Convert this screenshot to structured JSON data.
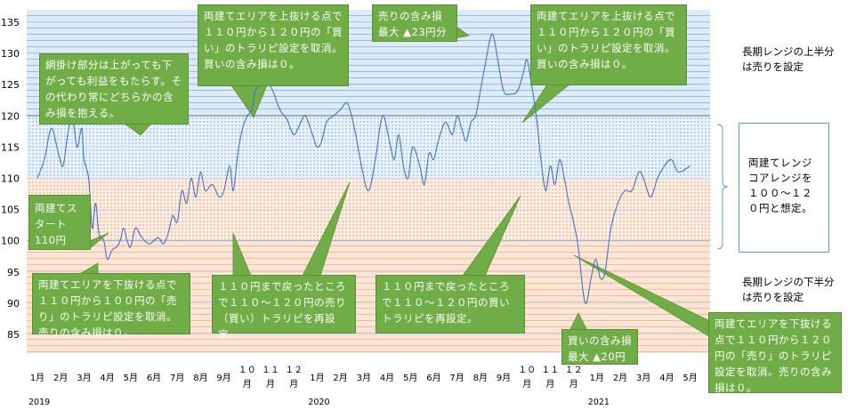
{
  "chart_data": {
    "type": "line",
    "x_unit": "month",
    "x": [
      "2019-01",
      "2019-02",
      "2019-03",
      "2019-04",
      "2019-05",
      "2019-06",
      "2019-07",
      "2019-08",
      "2019-09",
      "2019-10",
      "2019-11",
      "2019-12",
      "2020-01",
      "2020-02",
      "2020-03",
      "2020-04",
      "2020-05",
      "2020-06",
      "2020-07",
      "2020-08",
      "2020-09",
      "2020-10",
      "2020-11",
      "2020-12",
      "2021-01",
      "2021-02",
      "2021-03",
      "2021-04",
      "2021-05"
    ],
    "x_tick_labels": [
      "1月",
      "2月",
      "3月",
      "4月",
      "5月",
      "6月",
      "7月",
      "8月",
      "9月",
      "１０月",
      "１１月",
      "１２月",
      "1月",
      "2月",
      "3月",
      "4月",
      "5月",
      "6月",
      "7月",
      "8月",
      "9月",
      "１０月",
      "１１月",
      "１２月",
      "1月",
      "2月",
      "3月",
      "4月",
      "5月"
    ],
    "year_labels": [
      "2019",
      "2020",
      "2021"
    ],
    "ylim": [
      82,
      137
    ],
    "y_ticks": [
      85,
      90,
      95,
      100,
      105,
      110,
      115,
      120,
      125,
      130,
      135
    ],
    "series": [
      {
        "color": "#4472c4",
        "values": [
          [
            0.0,
            110
          ],
          [
            0.3,
            113
          ],
          [
            0.6,
            118
          ],
          [
            0.9,
            114
          ],
          [
            1.1,
            112
          ],
          [
            1.3,
            117
          ],
          [
            1.5,
            120
          ],
          [
            1.7,
            115
          ],
          [
            1.9,
            118
          ],
          [
            2.0,
            113
          ],
          [
            2.2,
            110
          ],
          [
            2.35,
            102
          ],
          [
            2.5,
            106
          ],
          [
            2.65,
            101
          ],
          [
            2.85,
            100
          ],
          [
            3.0,
            97
          ],
          [
            3.2,
            98.5
          ],
          [
            3.4,
            99
          ],
          [
            3.55,
            100
          ],
          [
            3.7,
            102
          ],
          [
            3.85,
            100
          ],
          [
            4.0,
            99
          ],
          [
            4.2,
            102
          ],
          [
            4.4,
            101
          ],
          [
            4.6,
            100
          ],
          [
            4.8,
            99.5
          ],
          [
            5.0,
            100
          ],
          [
            5.2,
            100.5
          ],
          [
            5.4,
            99.5
          ],
          [
            5.6,
            101
          ],
          [
            5.8,
            104
          ],
          [
            6.0,
            103
          ],
          [
            6.2,
            108
          ],
          [
            6.4,
            106
          ],
          [
            6.6,
            110
          ],
          [
            6.8,
            107
          ],
          [
            7.0,
            111
          ],
          [
            7.2,
            108
          ],
          [
            7.5,
            109
          ],
          [
            7.8,
            107
          ],
          [
            8.0,
            108
          ],
          [
            8.25,
            112
          ],
          [
            8.4,
            108
          ],
          [
            8.6,
            114
          ],
          [
            8.8,
            118
          ],
          [
            9.0,
            120
          ],
          [
            9.2,
            121
          ],
          [
            9.35,
            124
          ],
          [
            9.6,
            125
          ],
          [
            9.9,
            125
          ],
          [
            10.1,
            124
          ],
          [
            10.4,
            121
          ],
          [
            10.7,
            119.5
          ],
          [
            11.0,
            117
          ],
          [
            11.3,
            119
          ],
          [
            11.5,
            120
          ],
          [
            11.8,
            117
          ],
          [
            12.0,
            115
          ],
          [
            12.2,
            116
          ],
          [
            12.4,
            119
          ],
          [
            12.7,
            120
          ],
          [
            13.0,
            121
          ],
          [
            13.3,
            122
          ],
          [
            13.6,
            118
          ],
          [
            13.9,
            112
          ],
          [
            14.2,
            108
          ],
          [
            14.5,
            113
          ],
          [
            14.8,
            120
          ],
          [
            15.1,
            116
          ],
          [
            15.3,
            113
          ],
          [
            15.5,
            117
          ],
          [
            15.7,
            112
          ],
          [
            15.9,
            110
          ],
          [
            16.1,
            115
          ],
          [
            16.4,
            112
          ],
          [
            16.6,
            109
          ],
          [
            16.8,
            114
          ],
          [
            17.0,
            113
          ],
          [
            17.2,
            116
          ],
          [
            17.5,
            119
          ],
          [
            17.8,
            117
          ],
          [
            18.0,
            120
          ],
          [
            18.2,
            118
          ],
          [
            18.4,
            116
          ],
          [
            18.6,
            119
          ],
          [
            18.8,
            120
          ],
          [
            19.0,
            124
          ],
          [
            19.2,
            128
          ],
          [
            19.4,
            132
          ],
          [
            19.55,
            133
          ],
          [
            19.75,
            129
          ],
          [
            20.0,
            124
          ],
          [
            20.3,
            123.5
          ],
          [
            20.6,
            124
          ],
          [
            20.85,
            127
          ],
          [
            21.0,
            129
          ],
          [
            21.2,
            125
          ],
          [
            21.4,
            120
          ],
          [
            21.6,
            113
          ],
          [
            21.8,
            108
          ],
          [
            22.0,
            112
          ],
          [
            22.2,
            109
          ],
          [
            22.4,
            113
          ],
          [
            22.6,
            110
          ],
          [
            22.8,
            106
          ],
          [
            23.0,
            103
          ],
          [
            23.2,
            99
          ],
          [
            23.4,
            92
          ],
          [
            23.55,
            90
          ],
          [
            23.75,
            94
          ],
          [
            23.95,
            97
          ],
          [
            24.15,
            94
          ],
          [
            24.35,
            95
          ],
          [
            24.6,
            102
          ],
          [
            24.9,
            106
          ],
          [
            25.2,
            108
          ],
          [
            25.5,
            108
          ],
          [
            25.8,
            111
          ],
          [
            26.0,
            110
          ],
          [
            26.3,
            107
          ],
          [
            26.6,
            110
          ],
          [
            26.9,
            112
          ],
          [
            27.2,
            113
          ],
          [
            27.5,
            111
          ],
          [
            28.0,
            112
          ]
        ]
      }
    ],
    "bands": [
      {
        "from": 120,
        "to": 137,
        "color": "#ddebf7",
        "hatch": "horizontal-lines",
        "hatch_color": "#5b9bd5"
      },
      {
        "from": 110,
        "to": 120,
        "color": "#e3eef8",
        "hatch": "dots",
        "hatch_color": "#5b9bd5"
      },
      {
        "from": 100,
        "to": 110,
        "color": "#fbe5d6",
        "hatch": "dots",
        "hatch_color": "#d88a5a"
      },
      {
        "from": 82,
        "to": 100,
        "color": "#fbe5d6",
        "hatch": "horizontal-lines",
        "hatch_color": "#f4b183"
      }
    ],
    "grid": true,
    "legend": "none",
    "annotations": [
      {
        "text": "網掛け部分は上がっても下がっても利益をもたらす。その代わり常にどちらかの含み損を抱える。",
        "x": 4.5,
        "y": 117
      },
      {
        "text": "両建てエリアを上抜ける点で１１０円から１２０円の「買い」のトラリピ設定を取消。買いの含み損は０。",
        "x": 9.0,
        "y": 120
      },
      {
        "text": "売りの含み損最大 ▲23円分",
        "x": 19.55,
        "y": 133
      },
      {
        "text": "両建てエリアを上抜ける点で１１０円から１２０円の「買い」のトラリピ設定を取消。買いの含み損は０。",
        "x": 19.0,
        "y": 120
      },
      {
        "text": "両建てスタート 110円",
        "x": 0.0,
        "y": 110
      },
      {
        "text": "両建てエリアを下抜ける点で１１０円から１００円の「売り」のトラリピ設定を取消。売りの含み損は０。",
        "x": 2.85,
        "y": 100
      },
      {
        "text": "１１０円まで戻ったところで１１０～１２０円の売り（買い）トラリピを再設定。",
        "x": 8.0,
        "y": 108
      },
      {
        "text": "１１０円まで戻ったところで１１０～１２０円の買いトラリピを再設定。",
        "x": 22.0,
        "y": 110
      },
      {
        "text": "買いの含み損最大 ▲20円",
        "x": 23.55,
        "y": 90
      },
      {
        "text": "両建てエリアを下抜ける点で１１０円から１２０円の「売り」のトラリピ設定を取消。売りの含み損は０。",
        "x": 23.4,
        "y": 100
      }
    ]
  },
  "side_notes": {
    "upper": "長期レンジの上半分は売りを設定",
    "core": "両建てレンジコアレンジを１００～１２０円と想定。",
    "lower": "長期レンジの下半分は売りを設定"
  },
  "callouts": {
    "hatch_note": "網掛け部分は上がっても下がっても利益をもたらす。その代わり常にどちらかの含み損を抱える。",
    "break_up_1": "両建てエリアを上抜ける点で１１０円から１２０円の「買い」のトラリピ設定を取消。買いの含み損は０。",
    "max_loss_sell": "売りの含み損最大 ▲23円分",
    "break_up_2": "両建てエリアを上抜ける点で１１０円から１２０円の「買い」のトラリピ設定を取消。買いの含み損は０。",
    "start": "両建てスタート 110円",
    "break_down_1": "両建てエリアを下抜ける点で１１０円から１００円の「売り」のトラリピ設定を取消。売りの含み損は０。",
    "reset_1": "１１０円まで戻ったところで１１０～１２０円の売り（買い）トラリピを再設定。",
    "reset_2": "１１０円まで戻ったところで１１０～１２０円の買いトラリピを再設定。",
    "max_loss_buy": "買いの含み損最大 ▲20円",
    "break_down_2": "両建てエリアを下抜ける点で１１０円から１２０円の「売り」のトラリピ設定を取消。売りの含み損は０。"
  }
}
